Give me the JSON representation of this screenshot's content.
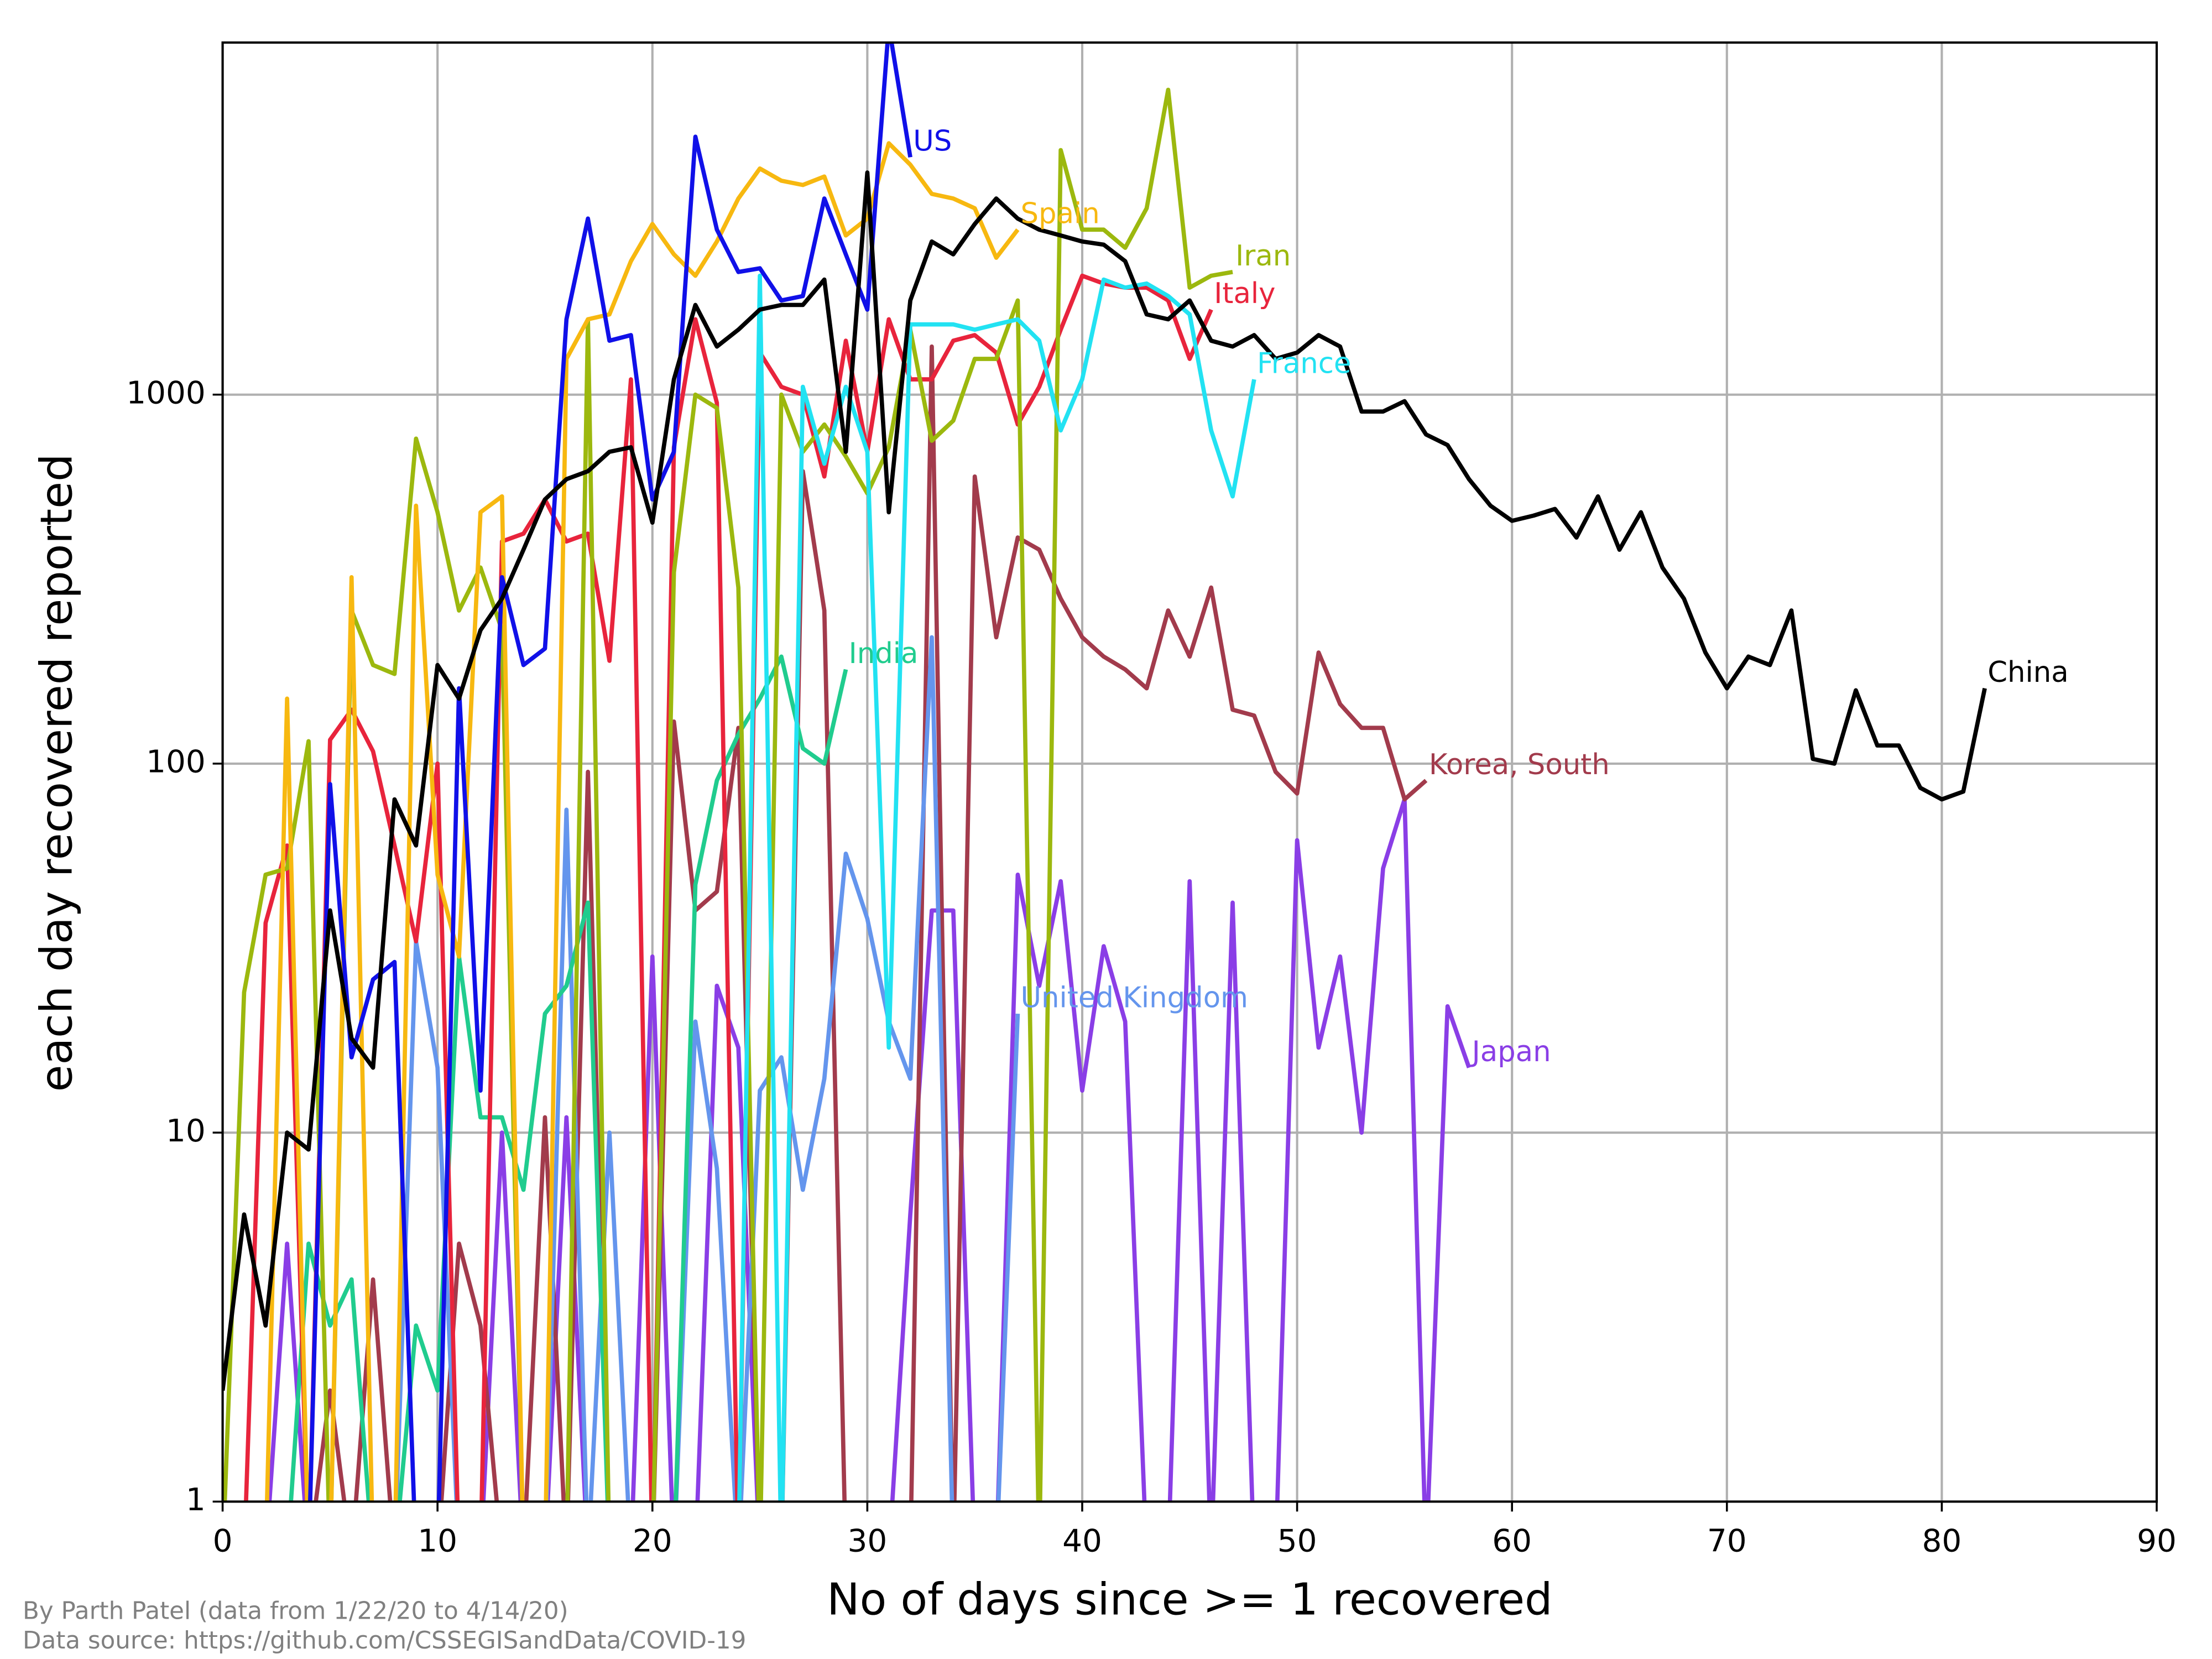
{
  "chart_data": {
    "type": "line",
    "xlabel": "No of days since >= 1 recovered",
    "ylabel": "each day recovered reported",
    "footnotes": [
      "By Parth Patel (data from 1/22/20 to 4/14/20)",
      "Data source: https://github.com/CSSEGISandData/COVID-19"
    ],
    "xlim": [
      0,
      90
    ],
    "xticks": [
      0,
      10,
      20,
      30,
      40,
      50,
      60,
      70,
      80,
      90
    ],
    "ylim": [
      1,
      9000
    ],
    "yticks": [
      1,
      10,
      100,
      1000
    ],
    "log_y": true,
    "grid": true,
    "series": [
      {
        "name": "Japan",
        "color": "#8a3ee6",
        "values": [
          0,
          0,
          0,
          5,
          0,
          0,
          0,
          0,
          0,
          0,
          0,
          0,
          0,
          10,
          0,
          0,
          11,
          0,
          0,
          0,
          30,
          0,
          0,
          25,
          17,
          0,
          0,
          0,
          0,
          0,
          0,
          0,
          6,
          40,
          40,
          0,
          0,
          50,
          25,
          48,
          13,
          32,
          20,
          0,
          0,
          48,
          0,
          42,
          0,
          0,
          62,
          17,
          30,
          10,
          52,
          80,
          0,
          22,
          15
        ]
      },
      {
        "name": "Korea, South",
        "color": "#a23b4c",
        "values": [
          0,
          0,
          0,
          0,
          0,
          2,
          0,
          4,
          0,
          0,
          0,
          5,
          3,
          0,
          0,
          11,
          0,
          95,
          0,
          0,
          0,
          130,
          40,
          45,
          125,
          0,
          0,
          620,
          260,
          0,
          0,
          0,
          0,
          1350,
          0,
          600,
          220,
          410,
          380,
          280,
          220,
          195,
          180,
          160,
          260,
          195,
          300,
          140,
          135,
          95,
          83,
          200,
          145,
          125,
          125,
          80,
          90
        ]
      },
      {
        "name": "United Kingdom",
        "color": "#6495ed",
        "values": [
          0,
          0,
          0,
          0,
          0,
          0,
          0,
          0,
          0,
          33,
          15,
          0,
          0,
          0,
          0,
          0,
          75,
          0,
          10,
          0,
          0,
          0,
          20,
          8,
          0,
          13,
          16,
          7,
          14,
          57,
          38,
          20,
          14,
          220,
          0,
          0,
          0,
          21
        ]
      },
      {
        "name": "India",
        "color": "#20cc8e",
        "values": [
          0,
          0,
          0,
          0,
          5,
          3,
          4,
          0,
          0,
          3,
          2,
          30,
          11,
          11,
          7,
          21,
          25,
          42,
          0,
          0,
          0,
          0,
          47,
          90,
          120,
          150,
          195,
          110,
          100,
          180
        ]
      },
      {
        "name": "Italy",
        "color": "#e8243c",
        "values": [
          0,
          0,
          37,
          60,
          0,
          116,
          140,
          108,
          60,
          33,
          100,
          0,
          0,
          400,
          420,
          520,
          400,
          420,
          190,
          1100,
          0,
          720,
          1600,
          950,
          0,
          1300,
          1050,
          1000,
          600,
          1400,
          700,
          1600,
          1100,
          1100,
          1400,
          1450,
          1300,
          830,
          1050,
          1500,
          2100,
          2000,
          1950,
          1950,
          1800,
          1250,
          1700
        ]
      },
      {
        "name": "Iran",
        "color": "#9cb80e",
        "values": [
          0,
          24,
          50,
          52,
          115,
          0,
          260,
          185,
          175,
          760,
          480,
          260,
          340,
          230,
          0,
          0,
          0,
          1600,
          0,
          0,
          0,
          330,
          1000,
          920,
          300,
          0,
          1000,
          700,
          830,
          680,
          540,
          720,
          1500,
          750,
          850,
          1250,
          1250,
          1800,
          0,
          4600,
          2800,
          2800,
          2500,
          3200,
          6700,
          1950,
          2100,
          2150
        ]
      },
      {
        "name": "Spain",
        "color": "#f7b810",
        "values": [
          0,
          0,
          0,
          150,
          0,
          0,
          320,
          0,
          0,
          500,
          50,
          30,
          480,
          530,
          0,
          0,
          1250,
          1600,
          1650,
          2300,
          2900,
          2400,
          2100,
          2600,
          3400,
          4100,
          3800,
          3700,
          3900,
          2700,
          3000,
          4800,
          4200,
          3500,
          3400,
          3200,
          2350,
          2800
        ]
      },
      {
        "name": "France",
        "color": "#22e2f2",
        "values": [
          0,
          0,
          0,
          0,
          0,
          0,
          0,
          0,
          0,
          0,
          0,
          0,
          0,
          0,
          0,
          0,
          0,
          0,
          0,
          0,
          0,
          0,
          0,
          0,
          0,
          2100,
          0,
          1050,
          650,
          1050,
          700,
          17,
          1550,
          1550,
          1550,
          1500,
          1550,
          1600,
          1400,
          800,
          1100,
          2050,
          1950,
          2000,
          1850,
          1650,
          800,
          530,
          1100
        ]
      },
      {
        "name": "US",
        "color": "#1010e8",
        "values": [
          0,
          0,
          0,
          0,
          0,
          88,
          16,
          26,
          29,
          0,
          0,
          160,
          13,
          320,
          185,
          205,
          1600,
          3000,
          1400,
          1450,
          520,
          700,
          5000,
          2800,
          2150,
          2200,
          1800,
          1850,
          3400,
          2400,
          1700,
          10000,
          4400
        ]
      },
      {
        "name": "China",
        "color": "#000000",
        "values": [
          2,
          6,
          3,
          10,
          9,
          40,
          18,
          15,
          80,
          60,
          185,
          150,
          230,
          280,
          380,
          520,
          590,
          620,
          700,
          720,
          450,
          1100,
          1750,
          1350,
          1500,
          1700,
          1750,
          1750,
          2050,
          700,
          4000,
          480,
          1800,
          2600,
          2400,
          2900,
          3400,
          3000,
          2800,
          2700,
          2600,
          2550,
          2300,
          1650,
          1600,
          1800,
          1400,
          1350,
          1450,
          1250,
          1300,
          1450,
          1350,
          900,
          900,
          960,
          780,
          730,
          590,
          500,
          455,
          470,
          490,
          410,
          530,
          380,
          480,
          340,
          280,
          200,
          160,
          195,
          185,
          260,
          103,
          100,
          158,
          112,
          112,
          86,
          80,
          84,
          160
        ]
      }
    ]
  }
}
